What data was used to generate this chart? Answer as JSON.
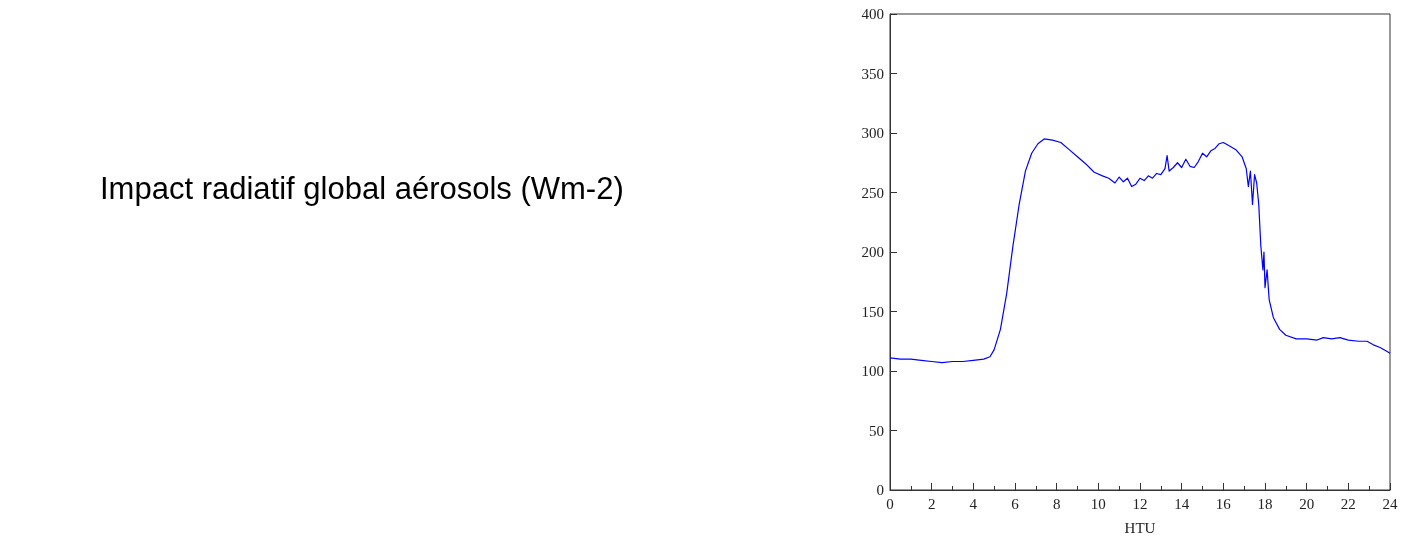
{
  "chart_data": {
    "type": "line",
    "title": "Impact radiatif global aérosols (Wm-2)",
    "xlabel": "HTU",
    "xlim": [
      0,
      24
    ],
    "xticks": [
      0,
      2,
      4,
      6,
      8,
      10,
      12,
      14,
      16,
      18,
      20,
      22,
      24
    ],
    "ylim": [
      0,
      400
    ],
    "yticks": [
      0,
      50,
      100,
      150,
      200,
      250,
      300,
      350,
      400
    ],
    "grid": false,
    "marker": "none",
    "line_style": "solid",
    "series": [
      {
        "color": "#0000ff",
        "x": [
          0,
          0.5,
          1,
          1.5,
          2,
          2.5,
          3,
          3.5,
          4,
          4.5,
          4.8,
          5,
          5.3,
          5.6,
          5.9,
          6.2,
          6.5,
          6.8,
          7.1,
          7.4,
          7.8,
          8.2,
          8.6,
          9,
          9.4,
          9.8,
          10.2,
          10.5,
          10.8,
          11,
          11.2,
          11.4,
          11.6,
          11.8,
          12,
          12.2,
          12.4,
          12.6,
          12.8,
          13,
          13.2,
          13.3,
          13.4,
          13.6,
          13.8,
          14,
          14.2,
          14.4,
          14.6,
          14.8,
          15,
          15.2,
          15.4,
          15.6,
          15.8,
          16,
          16.3,
          16.6,
          16.9,
          17.1,
          17.2,
          17.3,
          17.4,
          17.5,
          17.6,
          17.7,
          17.8,
          17.9,
          17.95,
          18,
          18.1,
          18.2,
          18.4,
          18.7,
          19,
          19.5,
          20,
          20.5,
          20.8,
          21.2,
          21.6,
          22,
          22.5,
          22.9,
          23.2,
          23.5,
          23.8,
          24
        ],
        "values": [
          111,
          110,
          110,
          109,
          108,
          107,
          108,
          108,
          109,
          110,
          112,
          118,
          135,
          165,
          205,
          240,
          268,
          283,
          291,
          295,
          294,
          292,
          286,
          280,
          274,
          267,
          264,
          262,
          258,
          263,
          259,
          262,
          255,
          257,
          262,
          260,
          264,
          262,
          266,
          265,
          270,
          281,
          268,
          271,
          275,
          271,
          278,
          272,
          271,
          276,
          283,
          280,
          285,
          287,
          291,
          292,
          289,
          286,
          280,
          270,
          255,
          268,
          240,
          265,
          258,
          240,
          205,
          185,
          200,
          170,
          185,
          160,
          145,
          135,
          130,
          127,
          127,
          126,
          128,
          127,
          128,
          126,
          125,
          125,
          122,
          120,
          117,
          115
        ]
      }
    ]
  }
}
